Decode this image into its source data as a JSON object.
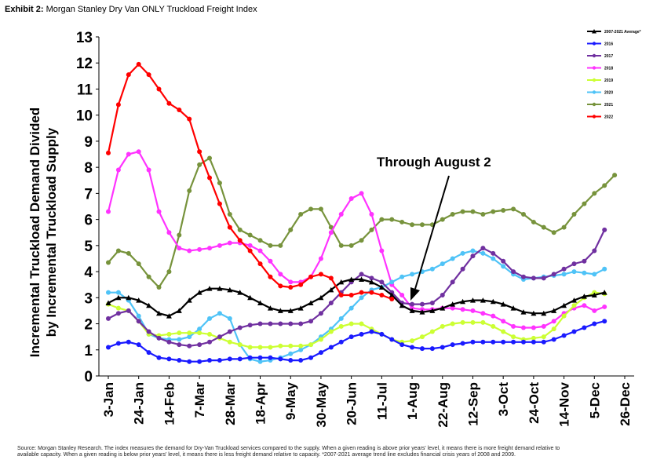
{
  "header": {
    "exhibit_label": "Exhibit 2:",
    "exhibit_title": "Morgan Stanley Dry Van ONLY Truckload Freight Index"
  },
  "chart_data": {
    "type": "line",
    "ylabel_line1": "Incremental Truckload Demand Divided",
    "ylabel_line2": "by Incremental Truckload Supply",
    "ylim": [
      0,
      13
    ],
    "yticks": [
      "0",
      "1",
      "2",
      "3",
      "4",
      "5",
      "6",
      "7",
      "8",
      "9",
      "10",
      "11",
      "12",
      "13"
    ],
    "xticks": [
      "3-Jan",
      "24-Jan",
      "14-Feb",
      "7-Mar",
      "28-Mar",
      "18-Apr",
      "9-May",
      "30-May",
      "20-Jun",
      "11-Jul",
      "1-Aug",
      "22-Aug",
      "12-Sep",
      "3-Oct",
      "24-Oct",
      "14-Nov",
      "5-Dec",
      "26-Dec"
    ],
    "annotation": "Through August 2",
    "grid": false,
    "legend_position": "top-right",
    "series": [
      {
        "name": "2007-2021 Average*",
        "color": "#000000",
        "marker": "triangle",
        "values": [
          2.8,
          3.0,
          3.0,
          2.9,
          2.7,
          2.4,
          2.3,
          2.5,
          2.9,
          3.2,
          3.35,
          3.35,
          3.3,
          3.2,
          3.0,
          2.8,
          2.6,
          2.5,
          2.5,
          2.6,
          2.8,
          3.0,
          3.3,
          3.6,
          3.7,
          3.7,
          3.6,
          3.4,
          3.1,
          2.7,
          2.5,
          2.45,
          2.5,
          2.6,
          2.75,
          2.85,
          2.9,
          2.9,
          2.85,
          2.75,
          2.6,
          2.45,
          2.4,
          2.4,
          2.5,
          2.7,
          2.9,
          3.05,
          3.1,
          3.2
        ]
      },
      {
        "name": "2016",
        "color": "#1a1aff",
        "marker": "circle",
        "values": [
          1.1,
          1.25,
          1.3,
          1.2,
          0.9,
          0.7,
          0.65,
          0.6,
          0.55,
          0.55,
          0.6,
          0.6,
          0.65,
          0.65,
          0.7,
          0.7,
          0.7,
          0.65,
          0.6,
          0.6,
          0.7,
          0.9,
          1.1,
          1.3,
          1.5,
          1.6,
          1.7,
          1.6,
          1.4,
          1.2,
          1.1,
          1.05,
          1.05,
          1.1,
          1.2,
          1.25,
          1.3,
          1.3,
          1.3,
          1.3,
          1.3,
          1.3,
          1.3,
          1.3,
          1.4,
          1.55,
          1.7,
          1.85,
          2.0,
          2.1
        ]
      },
      {
        "name": "2017",
        "color": "#7030a0",
        "marker": "circle",
        "values": [
          2.2,
          2.4,
          2.5,
          2.1,
          1.7,
          1.45,
          1.3,
          1.2,
          1.15,
          1.2,
          1.3,
          1.5,
          1.7,
          1.85,
          1.95,
          2.0,
          2.0,
          2.0,
          2.0,
          2.0,
          2.1,
          2.4,
          2.8,
          3.2,
          3.6,
          3.9,
          3.75,
          3.6,
          3.2,
          2.8,
          2.75,
          2.75,
          2.8,
          3.1,
          3.6,
          4.1,
          4.6,
          4.9,
          4.7,
          4.4,
          4.0,
          3.8,
          3.75,
          3.75,
          3.9,
          4.1,
          4.3,
          4.4,
          4.8,
          5.6
        ]
      },
      {
        "name": "2018",
        "color": "#ff33ff",
        "marker": "circle",
        "values": [
          6.3,
          7.9,
          8.5,
          8.6,
          7.9,
          6.3,
          5.5,
          4.9,
          4.8,
          4.85,
          4.9,
          5.0,
          5.1,
          5.1,
          5.0,
          4.8,
          4.4,
          3.9,
          3.6,
          3.6,
          3.8,
          4.5,
          5.5,
          6.2,
          6.8,
          7.0,
          6.2,
          4.8,
          3.5,
          3.1,
          2.6,
          2.55,
          2.55,
          2.6,
          2.6,
          2.55,
          2.5,
          2.4,
          2.3,
          2.1,
          1.9,
          1.85,
          1.85,
          1.9,
          2.1,
          2.4,
          2.6,
          2.7,
          2.5,
          2.65
        ]
      },
      {
        "name": "2019",
        "color": "#ccff33",
        "marker": "circle",
        "values": [
          2.75,
          2.6,
          2.5,
          2.1,
          1.6,
          1.55,
          1.6,
          1.65,
          1.65,
          1.65,
          1.6,
          1.45,
          1.3,
          1.2,
          1.1,
          1.1,
          1.1,
          1.15,
          1.15,
          1.15,
          1.2,
          1.4,
          1.7,
          1.9,
          2.0,
          2.0,
          1.8,
          1.6,
          1.4,
          1.3,
          1.35,
          1.5,
          1.7,
          1.9,
          2.0,
          2.05,
          2.05,
          2.05,
          1.9,
          1.7,
          1.5,
          1.4,
          1.45,
          1.5,
          1.8,
          2.3,
          2.7,
          3.0,
          3.2,
          3.15
        ]
      },
      {
        "name": "2020",
        "color": "#4fc3f7",
        "marker": "circle",
        "values": [
          3.2,
          3.2,
          2.9,
          2.3,
          1.6,
          1.45,
          1.4,
          1.4,
          1.5,
          1.8,
          2.2,
          2.4,
          2.2,
          1.2,
          0.65,
          0.55,
          0.6,
          0.7,
          0.85,
          1.0,
          1.2,
          1.5,
          1.8,
          2.2,
          2.6,
          3.0,
          3.3,
          3.4,
          3.6,
          3.8,
          3.9,
          4.0,
          4.1,
          4.3,
          4.5,
          4.7,
          4.8,
          4.7,
          4.5,
          4.2,
          3.9,
          3.7,
          3.75,
          3.8,
          3.85,
          3.9,
          4.0,
          3.95,
          3.9,
          4.1
        ]
      },
      {
        "name": "2021",
        "color": "#77933c",
        "marker": "circle",
        "values": [
          4.35,
          4.8,
          4.7,
          4.3,
          3.8,
          3.4,
          4.0,
          5.4,
          7.1,
          8.1,
          8.35,
          7.4,
          6.2,
          5.6,
          5.4,
          5.2,
          5.0,
          5.0,
          5.6,
          6.2,
          6.4,
          6.4,
          5.7,
          5.0,
          5.0,
          5.2,
          5.6,
          6.0,
          6.0,
          5.9,
          5.8,
          5.8,
          5.8,
          6.0,
          6.2,
          6.3,
          6.3,
          6.2,
          6.3,
          6.35,
          6.4,
          6.2,
          5.9,
          5.7,
          5.5,
          5.7,
          6.2,
          6.6,
          7.0,
          7.3,
          7.7
        ]
      },
      {
        "name": "2022",
        "color": "#ff0000",
        "marker": "circle",
        "values": [
          8.55,
          10.4,
          11.55,
          11.95,
          11.55,
          11.0,
          10.45,
          10.2,
          9.85,
          8.6,
          7.6,
          6.6,
          5.7,
          5.2,
          4.8,
          4.3,
          3.8,
          3.45,
          3.4,
          3.5,
          3.8,
          3.9,
          3.75,
          3.1,
          3.1,
          3.2,
          3.2,
          3.1,
          2.95
        ]
      }
    ]
  },
  "footer": {
    "source_line1": "Source: Morgan Stanley Research. The index measures the demand for Dry-Van Truckload services compared to the supply. When a given reading is above prior years' level, it means there is more freight demand relative to",
    "source_line2": "available capacity. When a given reading is below prior years' level, it means there is less freight demand relative to capacity. *2007-2021 average trend line excludes financial crisis years of 2008 and 2009."
  }
}
